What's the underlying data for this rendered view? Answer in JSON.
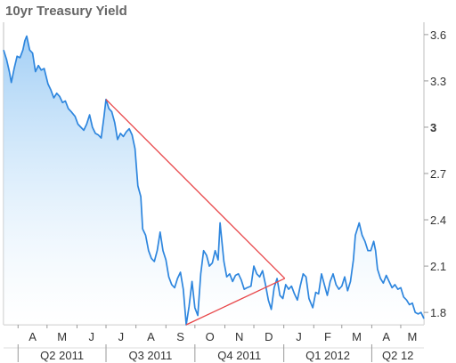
{
  "chart_data": {
    "type": "line",
    "title": "10yr Treasury Yield",
    "xlabel": "",
    "ylabel": "",
    "y_ticks": [
      {
        "label": "3.6",
        "value": 3.6,
        "bold": false
      },
      {
        "label": "3.3",
        "value": 3.3,
        "bold": false
      },
      {
        "label": "3",
        "value": 3.0,
        "bold": true
      },
      {
        "label": "2.7",
        "value": 2.7,
        "bold": false
      },
      {
        "label": "2.4",
        "value": 2.4,
        "bold": false
      },
      {
        "label": "2.1",
        "value": 2.1,
        "bold": false
      },
      {
        "label": "1.8",
        "value": 1.8,
        "bold": false
      }
    ],
    "ylim": [
      1.72,
      3.68
    ],
    "xlim": [
      "2011-03-17",
      "2012-05-25"
    ],
    "month_ticks": [
      {
        "label": "A",
        "date": "2011-04-01"
      },
      {
        "label": "M",
        "date": "2011-05-01"
      },
      {
        "label": "J",
        "date": "2011-06-01"
      },
      {
        "label": "J",
        "date": "2011-07-01"
      },
      {
        "label": "A",
        "date": "2011-08-01"
      },
      {
        "label": "S",
        "date": "2011-09-01"
      },
      {
        "label": "O",
        "date": "2011-10-01"
      },
      {
        "label": "N",
        "date": "2011-11-01"
      },
      {
        "label": "D",
        "date": "2011-12-01"
      },
      {
        "label": "J",
        "date": "2012-01-01"
      },
      {
        "label": "F",
        "date": "2012-02-01"
      },
      {
        "label": "M",
        "date": "2012-03-01"
      },
      {
        "label": "A",
        "date": "2012-04-01"
      },
      {
        "label": "M",
        "date": "2012-05-01"
      }
    ],
    "quarters": [
      {
        "label": "Q2 2011",
        "start": "2011-04-01",
        "end": "2011-07-01"
      },
      {
        "label": "Q3 2011",
        "start": "2011-07-01",
        "end": "2011-10-01"
      },
      {
        "label": "Q4 2011",
        "start": "2011-10-01",
        "end": "2012-01-01"
      },
      {
        "label": "Q1 2012",
        "start": "2012-01-01",
        "end": "2012-04-01"
      },
      {
        "label": "Q2 12",
        "start": "2012-04-01",
        "end": "2012-05-25"
      }
    ],
    "series": [
      {
        "color": "#2e86de",
        "points": [
          [
            "2011-03-17",
            3.5
          ],
          [
            "2011-03-20",
            3.44
          ],
          [
            "2011-03-23",
            3.36
          ],
          [
            "2011-03-25",
            3.29
          ],
          [
            "2011-03-28",
            3.38
          ],
          [
            "2011-03-31",
            3.46
          ],
          [
            "2011-04-03",
            3.45
          ],
          [
            "2011-04-06",
            3.5
          ],
          [
            "2011-04-08",
            3.56
          ],
          [
            "2011-04-10",
            3.59
          ],
          [
            "2011-04-13",
            3.5
          ],
          [
            "2011-04-16",
            3.48
          ],
          [
            "2011-04-19",
            3.36
          ],
          [
            "2011-04-22",
            3.4
          ],
          [
            "2011-04-25",
            3.37
          ],
          [
            "2011-04-28",
            3.38
          ],
          [
            "2011-05-02",
            3.28
          ],
          [
            "2011-05-05",
            3.24
          ],
          [
            "2011-05-08",
            3.19
          ],
          [
            "2011-05-11",
            3.22
          ],
          [
            "2011-05-14",
            3.2
          ],
          [
            "2011-05-17",
            3.16
          ],
          [
            "2011-05-20",
            3.17
          ],
          [
            "2011-05-23",
            3.12
          ],
          [
            "2011-05-26",
            3.1
          ],
          [
            "2011-05-30",
            3.07
          ],
          [
            "2011-06-02",
            3.02
          ],
          [
            "2011-06-05",
            3.0
          ],
          [
            "2011-06-08",
            2.98
          ],
          [
            "2011-06-11",
            3.02
          ],
          [
            "2011-06-14",
            3.08
          ],
          [
            "2011-06-17",
            3.0
          ],
          [
            "2011-06-20",
            2.96
          ],
          [
            "2011-06-23",
            2.95
          ],
          [
            "2011-06-26",
            2.93
          ],
          [
            "2011-06-29",
            3.07
          ],
          [
            "2011-07-01",
            3.18
          ],
          [
            "2011-07-04",
            3.12
          ],
          [
            "2011-07-07",
            3.1
          ],
          [
            "2011-07-10",
            3.03
          ],
          [
            "2011-07-13",
            2.92
          ],
          [
            "2011-07-16",
            2.96
          ],
          [
            "2011-07-19",
            2.94
          ],
          [
            "2011-07-22",
            2.97
          ],
          [
            "2011-07-25",
            2.99
          ],
          [
            "2011-07-28",
            2.95
          ],
          [
            "2011-07-31",
            2.86
          ],
          [
            "2011-08-03",
            2.62
          ],
          [
            "2011-08-06",
            2.55
          ],
          [
            "2011-08-08",
            2.34
          ],
          [
            "2011-08-11",
            2.3
          ],
          [
            "2011-08-14",
            2.2
          ],
          [
            "2011-08-17",
            2.15
          ],
          [
            "2011-08-20",
            2.13
          ],
          [
            "2011-08-23",
            2.2
          ],
          [
            "2011-08-26",
            2.32
          ],
          [
            "2011-08-29",
            2.2
          ],
          [
            "2011-09-01",
            2.14
          ],
          [
            "2011-09-04",
            2.03
          ],
          [
            "2011-09-07",
            1.98
          ],
          [
            "2011-09-10",
            1.96
          ],
          [
            "2011-09-13",
            2.02
          ],
          [
            "2011-09-16",
            2.06
          ],
          [
            "2011-09-19",
            1.95
          ],
          [
            "2011-09-22",
            1.72
          ],
          [
            "2011-09-25",
            1.84
          ],
          [
            "2011-09-28",
            2.0
          ],
          [
            "2011-10-01",
            1.83
          ],
          [
            "2011-10-04",
            1.78
          ],
          [
            "2011-10-07",
            2.05
          ],
          [
            "2011-10-10",
            2.2
          ],
          [
            "2011-10-13",
            2.17
          ],
          [
            "2011-10-16",
            2.1
          ],
          [
            "2011-10-19",
            2.12
          ],
          [
            "2011-10-22",
            2.2
          ],
          [
            "2011-10-25",
            2.14
          ],
          [
            "2011-10-27",
            2.38
          ],
          [
            "2011-10-31",
            2.13
          ],
          [
            "2011-11-03",
            2.03
          ],
          [
            "2011-11-06",
            2.05
          ],
          [
            "2011-11-09",
            2.0
          ],
          [
            "2011-11-12",
            2.04
          ],
          [
            "2011-11-15",
            2.05
          ],
          [
            "2011-11-18",
            2.01
          ],
          [
            "2011-11-21",
            1.95
          ],
          [
            "2011-11-24",
            1.96
          ],
          [
            "2011-11-28",
            1.97
          ],
          [
            "2011-12-01",
            2.1
          ],
          [
            "2011-12-04",
            2.05
          ],
          [
            "2011-12-07",
            2.03
          ],
          [
            "2011-12-10",
            2.07
          ],
          [
            "2011-12-13",
            1.98
          ],
          [
            "2011-12-16",
            1.88
          ],
          [
            "2011-12-19",
            1.82
          ],
          [
            "2011-12-22",
            1.96
          ],
          [
            "2011-12-25",
            2.02
          ],
          [
            "2011-12-28",
            1.91
          ],
          [
            "2011-12-31",
            1.89
          ],
          [
            "2012-01-03",
            1.98
          ],
          [
            "2012-01-06",
            1.95
          ],
          [
            "2012-01-09",
            1.97
          ],
          [
            "2012-01-12",
            1.92
          ],
          [
            "2012-01-15",
            1.88
          ],
          [
            "2012-01-18",
            1.97
          ],
          [
            "2012-01-21",
            2.05
          ],
          [
            "2012-01-24",
            2.03
          ],
          [
            "2012-01-27",
            1.89
          ],
          [
            "2012-01-31",
            1.83
          ],
          [
            "2012-02-03",
            1.93
          ],
          [
            "2012-02-06",
            1.92
          ],
          [
            "2012-02-09",
            2.05
          ],
          [
            "2012-02-12",
            1.98
          ],
          [
            "2012-02-15",
            1.91
          ],
          [
            "2012-02-18",
            2.0
          ],
          [
            "2012-02-21",
            2.05
          ],
          [
            "2012-02-24",
            1.98
          ],
          [
            "2012-02-27",
            1.95
          ],
          [
            "2012-03-01",
            1.97
          ],
          [
            "2012-03-04",
            2.03
          ],
          [
            "2012-03-07",
            1.94
          ],
          [
            "2012-03-10",
            2.0
          ],
          [
            "2012-03-13",
            2.14
          ],
          [
            "2012-03-15",
            2.3
          ],
          [
            "2012-03-19",
            2.38
          ],
          [
            "2012-03-22",
            2.3
          ],
          [
            "2012-03-25",
            2.26
          ],
          [
            "2012-03-28",
            2.2
          ],
          [
            "2012-03-31",
            2.2
          ],
          [
            "2012-04-03",
            2.26
          ],
          [
            "2012-04-05",
            2.2
          ],
          [
            "2012-04-07",
            2.08
          ],
          [
            "2012-04-10",
            2.02
          ],
          [
            "2012-04-13",
            1.99
          ],
          [
            "2012-04-16",
            2.04
          ],
          [
            "2012-04-19",
            2.0
          ],
          [
            "2012-04-22",
            1.96
          ],
          [
            "2012-04-25",
            1.98
          ],
          [
            "2012-04-28",
            1.95
          ],
          [
            "2012-05-01",
            1.96
          ],
          [
            "2012-05-04",
            1.9
          ],
          [
            "2012-05-07",
            1.88
          ],
          [
            "2012-05-10",
            1.85
          ],
          [
            "2012-05-13",
            1.86
          ],
          [
            "2012-05-16",
            1.8
          ],
          [
            "2012-05-19",
            1.79
          ],
          [
            "2012-05-22",
            1.8
          ],
          [
            "2012-05-25",
            1.76
          ]
        ]
      }
    ],
    "annotations": [
      {
        "type": "trendline",
        "color": "#e8474a",
        "from": [
          "2011-07-01",
          3.18
        ],
        "to": [
          "2012-01-02",
          2.02
        ]
      },
      {
        "type": "trendline",
        "color": "#e8474a",
        "from": [
          "2011-09-22",
          1.72
        ],
        "to": [
          "2012-01-02",
          2.02
        ]
      }
    ],
    "grid": false,
    "legend": "none"
  }
}
